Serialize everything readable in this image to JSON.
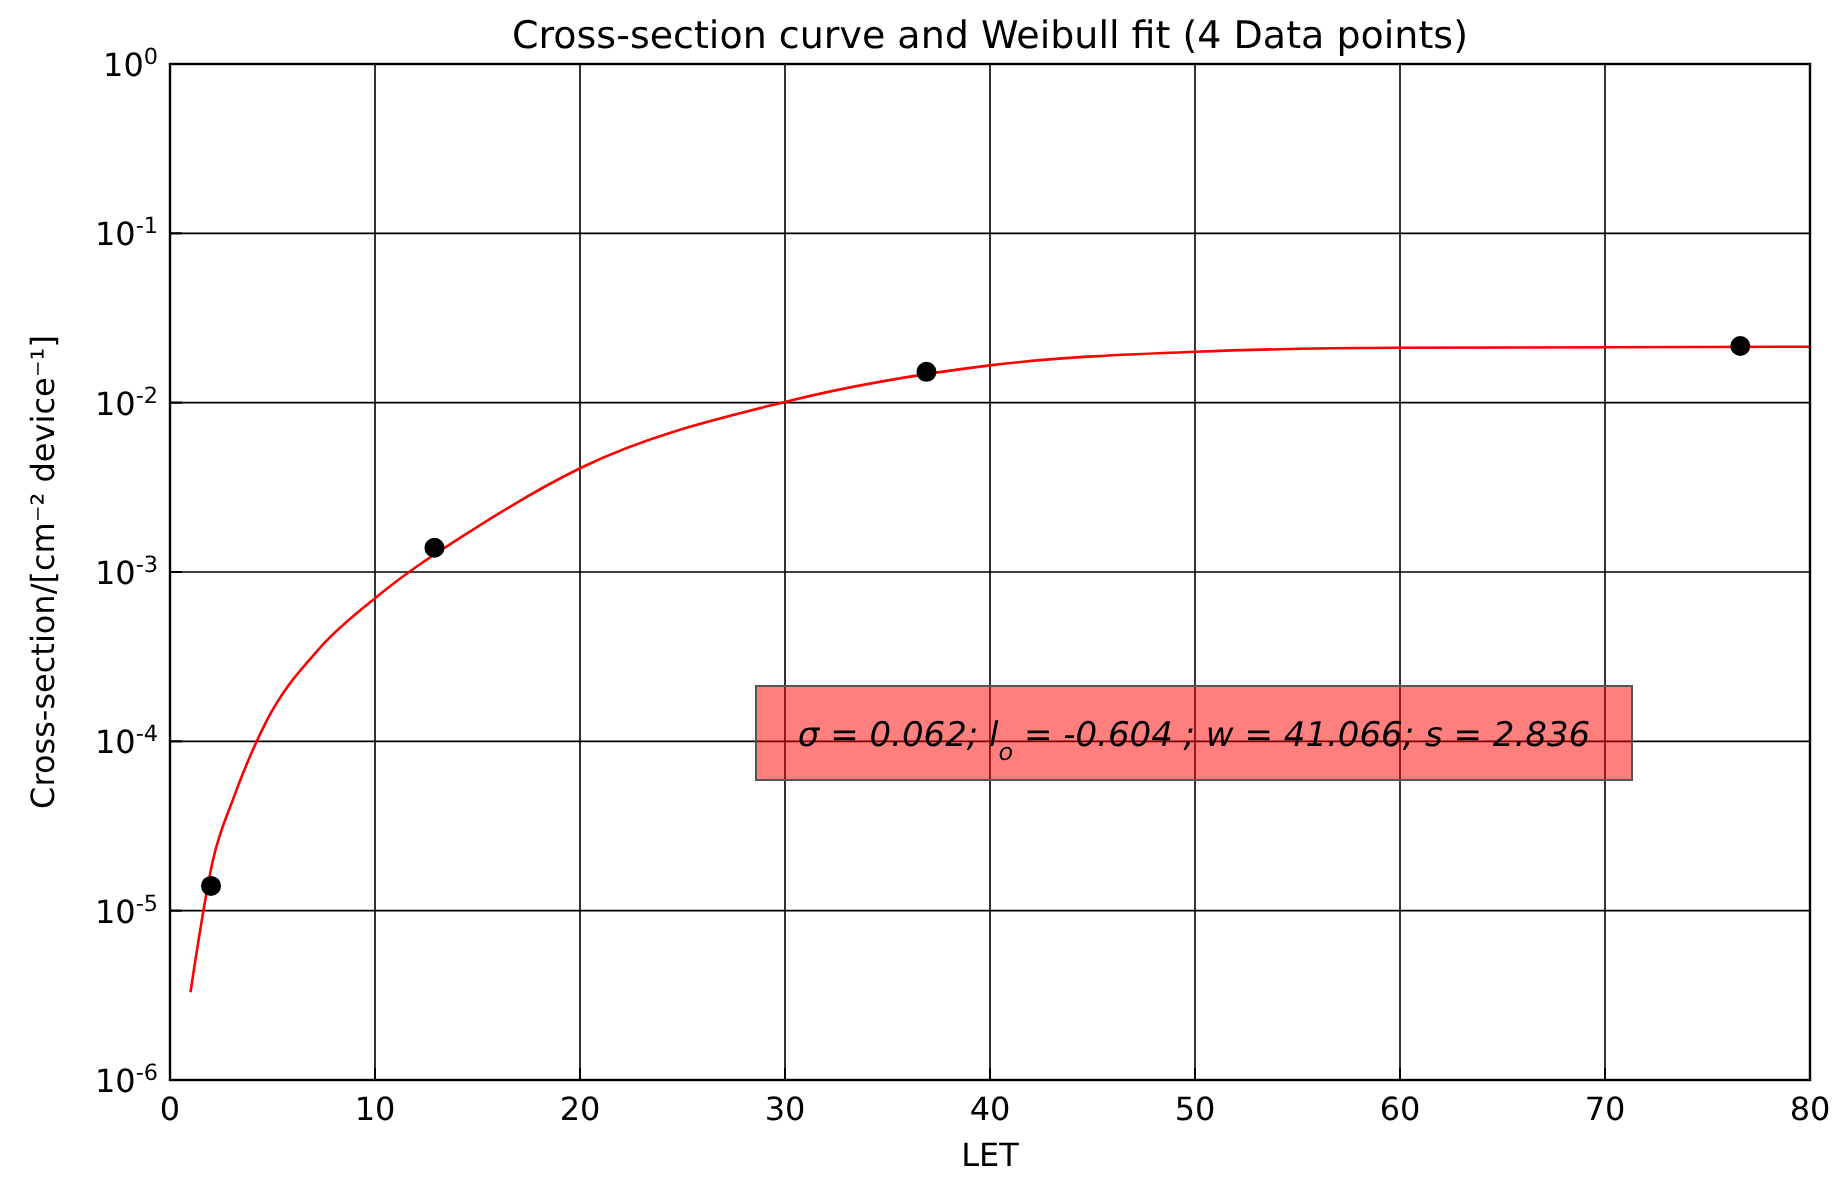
{
  "chart_data": {
    "type": "scatter",
    "title": "Cross-section curve and Weibull fit (4 Data points)",
    "xlabel": "LET",
    "ylabel": "Cross-section/[cm⁻² device⁻¹]",
    "xlim": [
      0,
      80
    ],
    "xticks": [
      0,
      10,
      20,
      30,
      40,
      50,
      60,
      70,
      80
    ],
    "ylim": [
      1e-06,
      1
    ],
    "log": "y",
    "yticks": [
      {
        "value": 1e-06,
        "label": "10$^{-6}$"
      },
      {
        "value": 1e-05,
        "label": "10$^{-5}$"
      },
      {
        "value": 0.0001,
        "label": "10$^{-4}$"
      },
      {
        "value": 0.001,
        "label": "10$^{-3}$"
      },
      {
        "value": 0.01,
        "label": "10$^{-2}$"
      },
      {
        "value": 0.1,
        "label": "10$^{-1}$"
      },
      {
        "value": 1,
        "label": "10$^{0}$"
      }
    ],
    "grid": true,
    "series": [
      {
        "type": "line",
        "color": "#ff0000",
        "marker": "none",
        "x": [
          1,
          2.1,
          3.12,
          4.67,
          7.26,
          10,
          15,
          20,
          30,
          40,
          50,
          60,
          80
        ],
        "values": [
          3.3e-06,
          2e-05,
          4.7e-05,
          0.000129,
          0.00035,
          0.0007,
          0.00185,
          0.0041,
          0.0101,
          0.0166,
          0.02,
          0.0211,
          0.0214
        ]
      },
      {
        "color": "#000000",
        "marker": "circle",
        "x": [
          2,
          12.9,
          36.9,
          76.6
        ],
        "values": [
          1.4e-05,
          0.00139,
          0.0152,
          0.0216
        ]
      }
    ],
    "annotations": [
      "σ = 0.062; l$_{o}$ = -0.604 ; w = 41.066; s = 2.836"
    ]
  }
}
